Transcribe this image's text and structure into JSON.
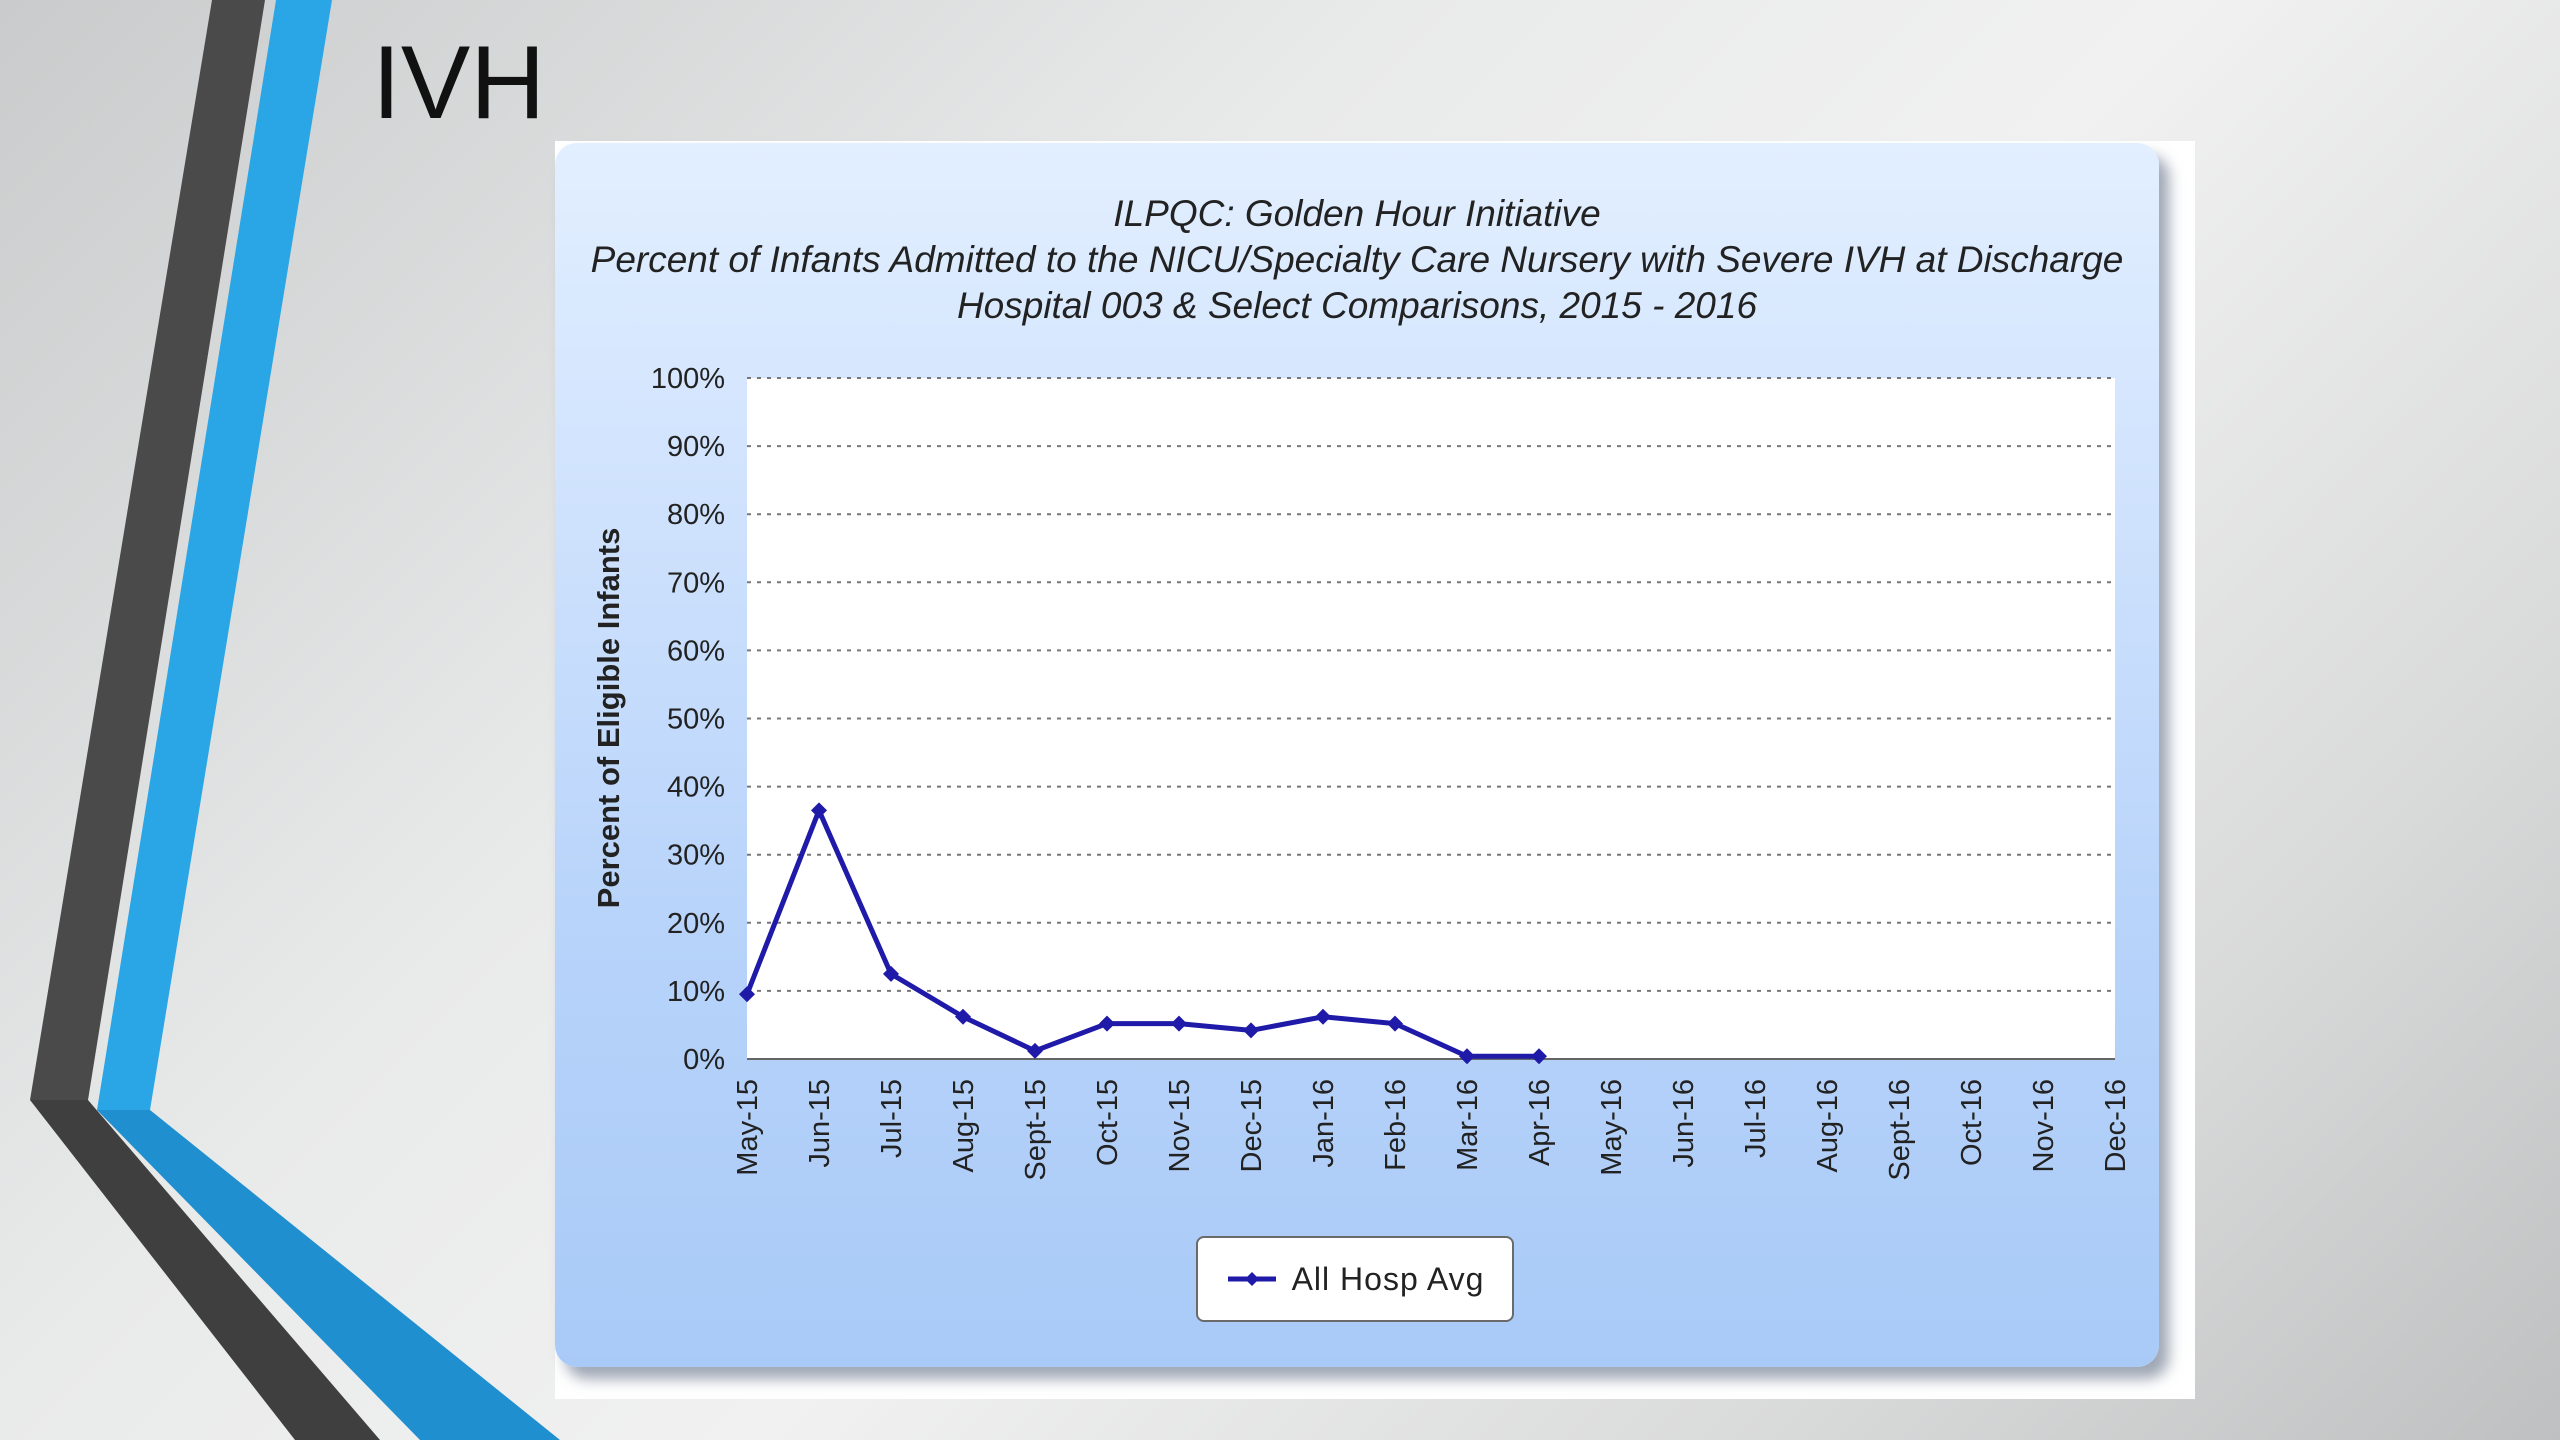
{
  "slide": {
    "title": "IVH"
  },
  "colors": {
    "accent_blue": "#2aa6e6",
    "deco_dark": "#4a4a4a",
    "series_line": "#1f1aa8"
  },
  "chart_data": {
    "type": "line",
    "title": "ILPQC: Golden Hour Initiative",
    "subtitle": "Percent of Infants Admitted to the NICU/Specialty Care Nursery with Severe IVH at Discharge",
    "subtitle_2": "Hospital 003 & Select Comparisons, 2015 - 2016",
    "xlabel": "",
    "ylabel": "Percent of Eligible Infants",
    "ylim": [
      0,
      100
    ],
    "y_ticks": [
      "0%",
      "10%",
      "20%",
      "30%",
      "40%",
      "50%",
      "60%",
      "70%",
      "80%",
      "90%",
      "100%"
    ],
    "categories": [
      "May-15",
      "Jun-15",
      "Jul-15",
      "Aug-15",
      "Sept-15",
      "Oct-15",
      "Nov-15",
      "Dec-15",
      "Jan-16",
      "Feb-16",
      "Mar-16",
      "Apr-16",
      "May-16",
      "Jun-16",
      "Jul-16",
      "Aug-16",
      "Sept-16",
      "Oct-16",
      "Nov-16",
      "Dec-16"
    ],
    "series": [
      {
        "name": "All Hosp Avg",
        "values": [
          9.5,
          36.5,
          12.5,
          6.2,
          1.2,
          5.2,
          5.2,
          4.2,
          6.2,
          5.2,
          0.4,
          0.4,
          null,
          null,
          null,
          null,
          null,
          null,
          null,
          null
        ]
      }
    ],
    "grid": true,
    "legend_position": "bottom-center"
  }
}
